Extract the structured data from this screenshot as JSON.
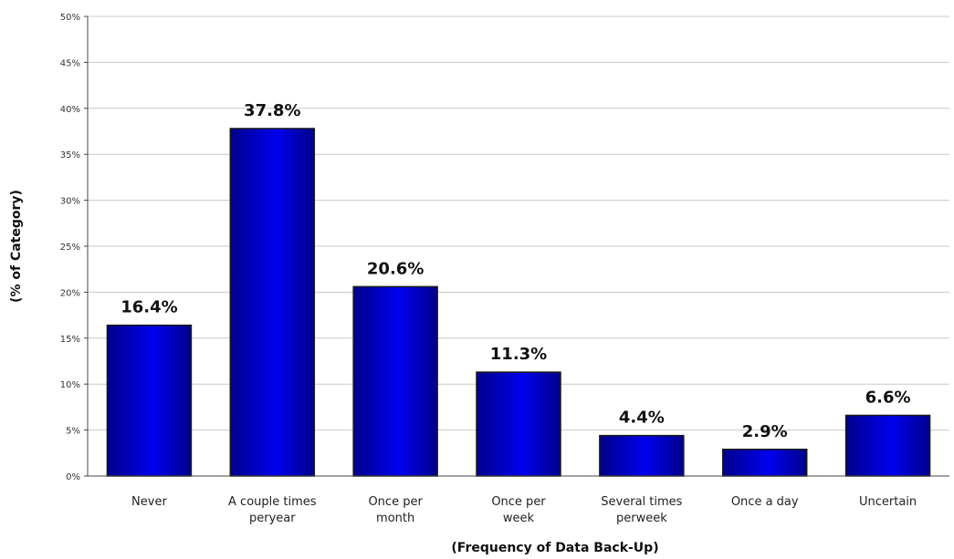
{
  "chart_data": {
    "type": "bar",
    "categories": [
      [
        "Never"
      ],
      [
        "A couple times",
        "peryear"
      ],
      [
        "Once per",
        "month"
      ],
      [
        "Once per",
        "week"
      ],
      [
        "Several times",
        "perweek"
      ],
      [
        "Once a day"
      ],
      [
        "Uncertain"
      ]
    ],
    "values": [
      16.4,
      37.8,
      20.6,
      11.3,
      4.4,
      2.9,
      6.6
    ],
    "value_labels": [
      "16.4%",
      "37.8%",
      "20.6%",
      "11.3%",
      "4.4%",
      "2.9%",
      "6.6%"
    ],
    "xlabel": "(Frequency of Data Back-Up)",
    "ylabel": "(% of Category)",
    "ylim": [
      0,
      50
    ],
    "yticks": [
      0,
      5,
      10,
      15,
      20,
      25,
      30,
      35,
      40,
      45,
      50
    ],
    "ytick_labels": [
      "0%",
      "5%",
      "10%",
      "15%",
      "20%",
      "25%",
      "30%",
      "35%",
      "40%",
      "45%",
      "50%"
    ],
    "grid": true,
    "bar_color": "#0000ee",
    "bar_color_dark": "#00008b"
  }
}
